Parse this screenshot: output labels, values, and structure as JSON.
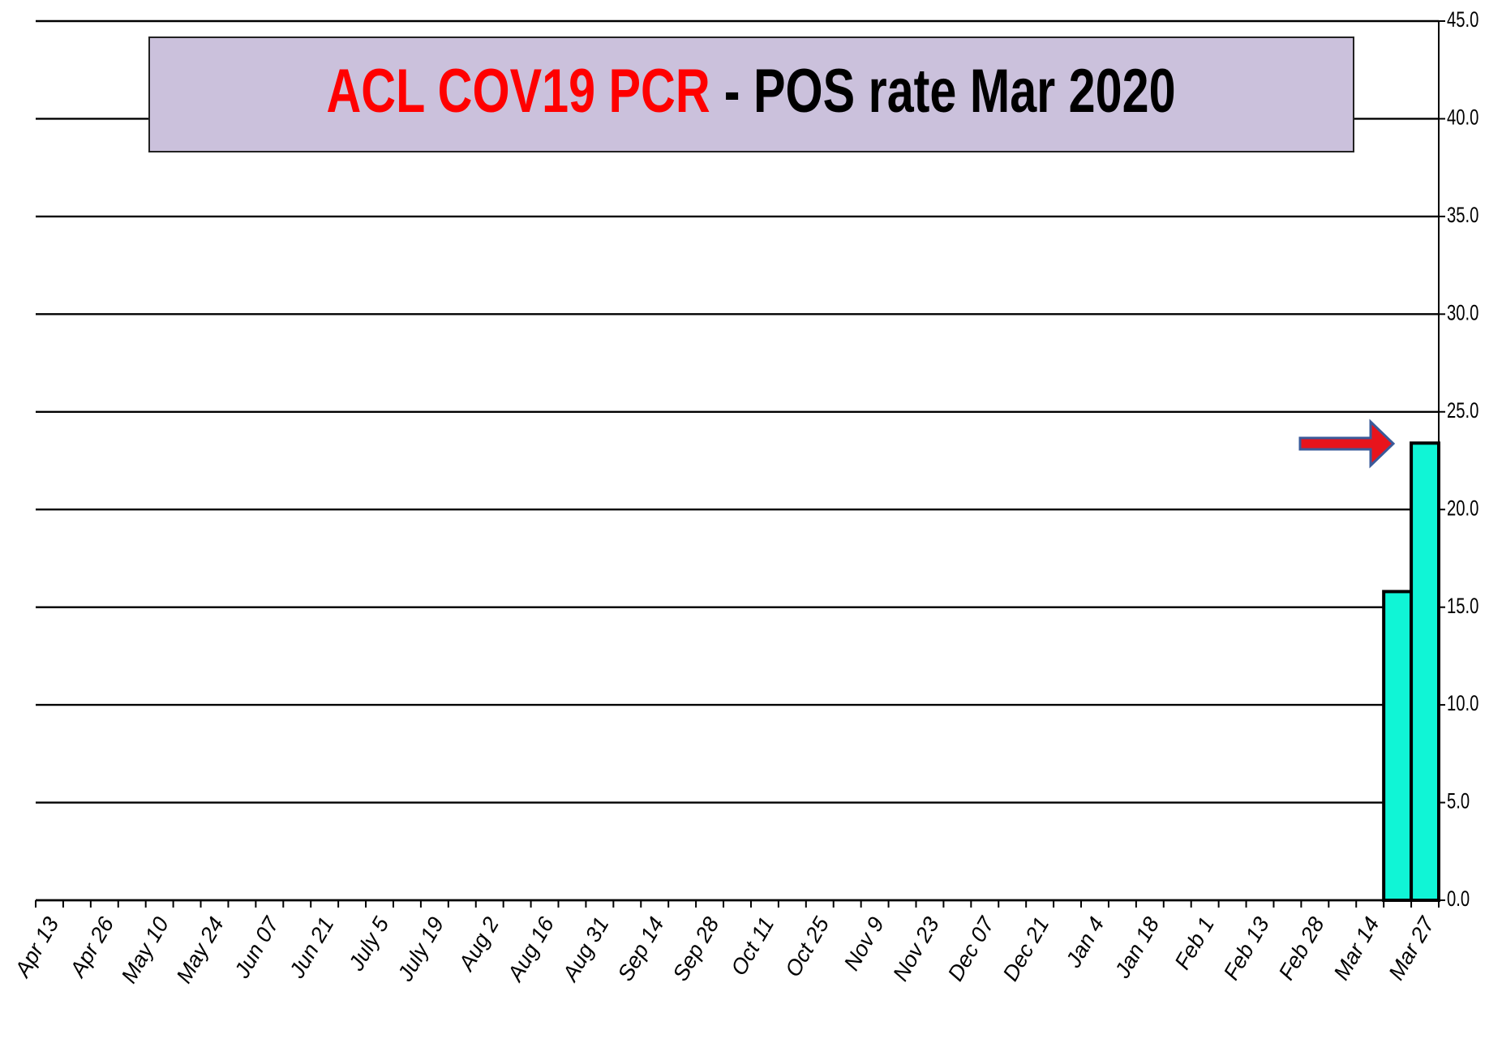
{
  "chart_data": {
    "type": "bar",
    "title_parts": [
      {
        "text": "ACL COV19 PCR",
        "color": "#ff0000"
      },
      {
        "text": "-  POS rate  Mar 2020",
        "color": "#000000"
      }
    ],
    "categories": [
      "Apr 13",
      null,
      "Apr 26",
      null,
      "May 10",
      null,
      "May 24",
      null,
      "Jun 07",
      null,
      "Jun 21",
      null,
      "July 5",
      null,
      "July 19",
      null,
      "Aug 2",
      null,
      "Aug 16",
      null,
      "Aug 31",
      null,
      "Sep 14",
      null,
      "Sep 28",
      null,
      "Oct 11",
      null,
      "Oct 25",
      null,
      "Nov 9",
      null,
      "Nov 23",
      null,
      "Dec 07",
      null,
      "Dec 21",
      null,
      "Jan 4",
      null,
      "Jan 18",
      null,
      "Feb 1",
      null,
      "Feb 13",
      null,
      "Feb 28",
      null,
      "Mar 14",
      null,
      "Mar 27"
    ],
    "values": [
      null,
      null,
      null,
      null,
      null,
      null,
      null,
      null,
      null,
      null,
      null,
      null,
      null,
      null,
      null,
      null,
      null,
      null,
      null,
      null,
      null,
      null,
      null,
      null,
      null,
      null,
      null,
      null,
      null,
      null,
      null,
      null,
      null,
      null,
      null,
      null,
      null,
      null,
      null,
      null,
      null,
      null,
      null,
      null,
      null,
      null,
      null,
      null,
      null,
      15.8,
      23.4
    ],
    "color": "#10f5d6",
    "ylim": [
      0,
      45
    ],
    "yticks": [
      {
        "value": 0,
        "label": "0.0"
      },
      {
        "value": 5,
        "label": "5.0"
      },
      {
        "value": 10,
        "label": "10.0"
      },
      {
        "value": 15,
        "label": "15.0"
      },
      {
        "value": 20,
        "label": "20.0"
      },
      {
        "value": 25,
        "label": "25.0"
      },
      {
        "value": 30,
        "label": "30.0"
      },
      {
        "value": 35,
        "label": "35.0"
      },
      {
        "value": 40,
        "label": "40.0"
      },
      {
        "value": 45,
        "label": "45.0"
      }
    ],
    "grid": true
  }
}
